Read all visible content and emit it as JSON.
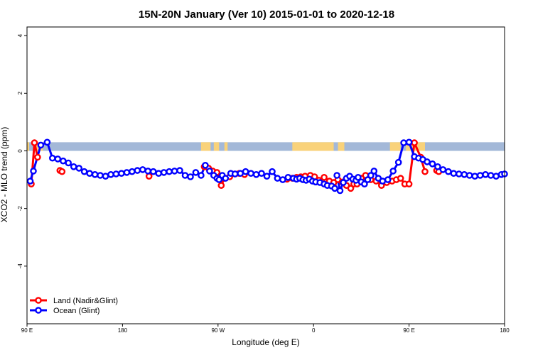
{
  "chart_data": {
    "type": "line",
    "title": "15N-20N January (Ver 10)   2015-01-01 to 2020-12-18",
    "xlabel": "Longitude (deg E)",
    "ylabel": "XCO2 - MLO trend (ppm)",
    "xlim": [
      90,
      540
    ],
    "ylim": [
      -6,
      4.3
    ],
    "x_ticks": [
      {
        "value": 90,
        "label": "90 E"
      },
      {
        "value": 180,
        "label": "180"
      },
      {
        "value": 270,
        "label": "90 W"
      },
      {
        "value": 360,
        "label": "0"
      },
      {
        "value": 450,
        "label": "90 E"
      },
      {
        "value": 540,
        "label": "180"
      }
    ],
    "y_ticks": [
      {
        "value": 4,
        "label": "4"
      },
      {
        "value": 2,
        "label": "2"
      },
      {
        "value": 0,
        "label": "0"
      },
      {
        "value": -2,
        "label": "-2"
      },
      {
        "value": -4,
        "label": "-4"
      }
    ],
    "colors": {
      "land": "#ff0000",
      "ocean": "#0000ff",
      "map_ocean": "#a3b8d8",
      "map_land": "#f9d27a"
    },
    "land_mask": [
      {
        "from": 90,
        "to": 92
      },
      {
        "from": 99,
        "to": 105
      },
      {
        "from": 254,
        "to": 263
      },
      {
        "from": 266,
        "to": 271
      },
      {
        "from": 276,
        "to": 279
      },
      {
        "from": 340,
        "to": 379
      },
      {
        "from": 383,
        "to": 389
      },
      {
        "from": 432,
        "to": 442
      },
      {
        "from": 447,
        "to": 465
      }
    ],
    "series": [
      {
        "name": "Land (Nadir&Glint)",
        "color": "#ff0000",
        "segments": [
          {
            "x": [
              94,
              97,
              100
            ],
            "y": [
              -1.15,
              0.28,
              -0.22
            ]
          },
          {
            "x": [
              121,
              123
            ],
            "y": [
              -0.68,
              -0.72
            ]
          },
          {
            "x": [
              205
            ],
            "y": [
              -0.88
            ]
          },
          {
            "x": [
              257,
              261,
              265,
              269,
              273,
              276,
              281,
              286,
              290,
              295
            ],
            "y": [
              -0.55,
              -0.6,
              -0.7,
              -0.75,
              -1.2,
              -0.95,
              -0.9,
              -0.8,
              -0.78,
              -0.82
            ]
          },
          {
            "x": [
              335,
              340,
              344,
              348,
              352,
              357,
              361,
              365,
              370,
              375,
              379,
              383,
              387,
              391,
              395,
              398,
              401,
              405,
              409,
              414,
              419,
              424,
              429,
              434,
              438,
              442,
              446,
              450,
              455,
              461,
              465
            ],
            "y": [
              -0.98,
              -0.95,
              -0.92,
              -0.9,
              -0.88,
              -0.85,
              -0.9,
              -1.02,
              -0.92,
              -1.05,
              -1.1,
              -1.0,
              -1.08,
              -1.2,
              -1.3,
              -1.15,
              -1.15,
              -0.95,
              -0.85,
              -1.0,
              -1.05,
              -1.2,
              -1.1,
              -1.05,
              -1.0,
              -0.95,
              -1.15,
              -1.15,
              0.28,
              -0.22,
              -0.72
            ]
          },
          {
            "x": [
              476,
              478
            ],
            "y": [
              -0.68,
              -0.72
            ]
          }
        ]
      },
      {
        "name": "Ocean (Glint)",
        "color": "#0000ff",
        "segments": [
          {
            "x": [
              93,
              96,
              103,
              109,
              114,
              119,
              124,
              129,
              134,
              139,
              144,
              149,
              154,
              159,
              164,
              169,
              174,
              179,
              184,
              189,
              194,
              199,
              204,
              209,
              214,
              219,
              224,
              229,
              234,
              239,
              244,
              249,
              254,
              258,
              262,
              266,
              269,
              271,
              274,
              277,
              282,
              286,
              291,
              296,
              301,
              306,
              311,
              316,
              321,
              326,
              331,
              336,
              341,
              344,
              347,
              350,
              353,
              356,
              359,
              362,
              366,
              370,
              373,
              377,
              380,
              382,
              385,
              388,
              391,
              394,
              397,
              400,
              402,
              405,
              408,
              411,
              414,
              417,
              421,
              425,
              430,
              435,
              440,
              445,
              450,
              455,
              459,
              463,
              467,
              472,
              477,
              482,
              487,
              492,
              497,
              502,
              507,
              512,
              517,
              522,
              527,
              532,
              537,
              540
            ],
            "y": [
              -1.05,
              -0.7,
              0.2,
              0.3,
              -0.25,
              -0.28,
              -0.35,
              -0.42,
              -0.55,
              -0.6,
              -0.72,
              -0.78,
              -0.82,
              -0.85,
              -0.88,
              -0.82,
              -0.8,
              -0.78,
              -0.75,
              -0.72,
              -0.68,
              -0.65,
              -0.7,
              -0.72,
              -0.78,
              -0.75,
              -0.72,
              -0.7,
              -0.68,
              -0.85,
              -0.9,
              -0.75,
              -0.85,
              -0.5,
              -0.7,
              -0.85,
              -0.95,
              -1.0,
              -0.85,
              -0.95,
              -0.78,
              -0.8,
              -0.78,
              -0.72,
              -0.78,
              -0.82,
              -0.78,
              -0.88,
              -0.72,
              -0.95,
              -1.0,
              -0.92,
              -0.95,
              -0.98,
              -0.95,
              -1.0,
              -1.02,
              -0.98,
              -1.05,
              -1.08,
              -1.1,
              -1.15,
              -1.2,
              -1.22,
              -1.3,
              -0.85,
              -1.38,
              -1.1,
              -0.95,
              -0.88,
              -0.98,
              -1.02,
              -0.92,
              -1.08,
              -1.15,
              -1.0,
              -0.85,
              -0.7,
              -0.95,
              -1.05,
              -1.0,
              -0.7,
              -0.4,
              0.28,
              0.3,
              -0.2,
              -0.25,
              -0.3,
              -0.38,
              -0.45,
              -0.55,
              -0.65,
              -0.72,
              -0.78,
              -0.8,
              -0.82,
              -0.85,
              -0.88,
              -0.85,
              -0.82,
              -0.85,
              -0.88,
              -0.82,
              -0.8
            ]
          }
        ]
      }
    ]
  }
}
